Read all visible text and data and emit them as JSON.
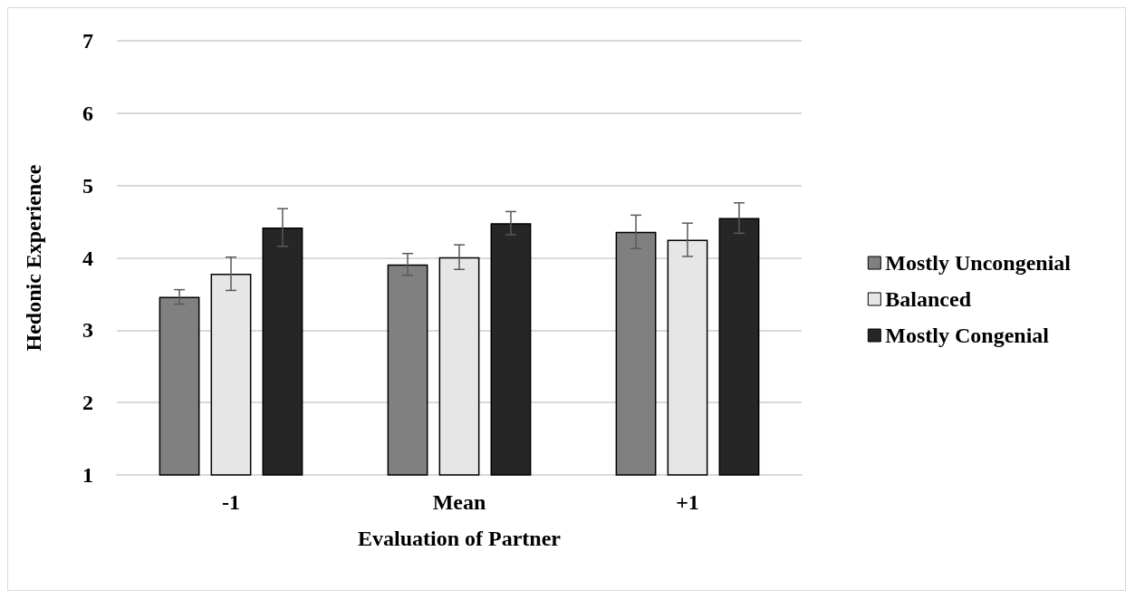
{
  "chart_data": {
    "type": "bar",
    "xlabel": "Evaluation of Partner",
    "ylabel": "Hedonic Experience",
    "categories": [
      "-1",
      "Mean",
      "+1"
    ],
    "series": [
      {
        "name": "Mostly Uncongenial",
        "color": "#808080",
        "values": [
          3.46,
          3.91,
          4.36
        ],
        "errors": [
          0.1,
          0.15,
          0.23
        ]
      },
      {
        "name": "Balanced",
        "color": "#e6e6e6",
        "values": [
          3.78,
          4.01,
          4.25
        ],
        "errors": [
          0.23,
          0.17,
          0.23
        ]
      },
      {
        "name": "Mostly Congenial",
        "color": "#262626",
        "values": [
          4.42,
          4.48,
          4.55
        ],
        "errors": [
          0.26,
          0.16,
          0.21
        ]
      }
    ],
    "ylim": [
      1,
      7
    ],
    "yticks": [
      1,
      2,
      3,
      4,
      5,
      6,
      7
    ],
    "grid": "y",
    "legend": "right"
  }
}
